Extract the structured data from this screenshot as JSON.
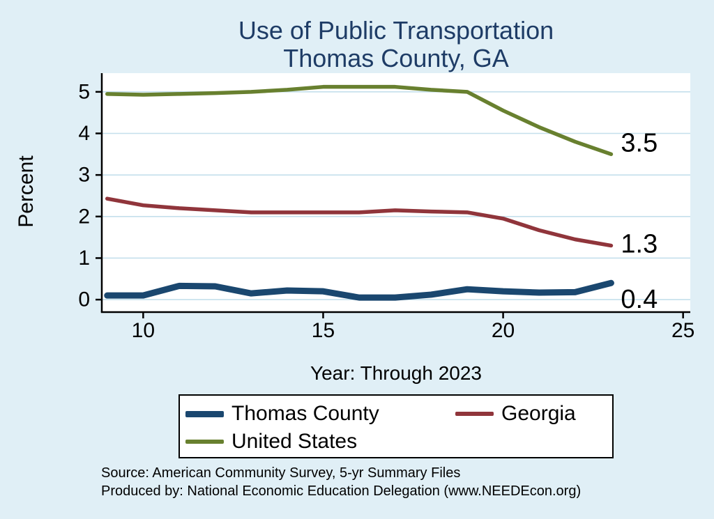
{
  "chart_data": {
    "type": "line",
    "title": "Use of Public Transportation",
    "subtitle": "Thomas County, GA",
    "xlabel": "Year: Through 2023",
    "ylabel": "Percent",
    "xlim": [
      8.85,
      25.2
    ],
    "ylim": [
      -0.3,
      5.45
    ],
    "xticks": [
      10,
      15,
      20,
      25
    ],
    "yticks": [
      0,
      1,
      2,
      3,
      4,
      5
    ],
    "grid": "horizontal",
    "legend_position": "bottom",
    "x": [
      9,
      10,
      11,
      12,
      13,
      14,
      15,
      16,
      17,
      18,
      19,
      20,
      21,
      22,
      23
    ],
    "series": [
      {
        "name": "Thomas County",
        "color": "#1a476f",
        "values": [
          0.1,
          0.1,
          0.33,
          0.32,
          0.15,
          0.22,
          0.2,
          0.05,
          0.05,
          0.12,
          0.25,
          0.2,
          0.17,
          0.18,
          0.4
        ],
        "end_label": "0.4"
      },
      {
        "name": "Georgia",
        "color": "#90353b",
        "values": [
          2.43,
          2.27,
          2.2,
          2.15,
          2.1,
          2.1,
          2.1,
          2.1,
          2.15,
          2.12,
          2.1,
          1.95,
          1.67,
          1.45,
          1.3
        ],
        "end_label": "1.3"
      },
      {
        "name": "United States",
        "color": "#68802f",
        "values": [
          4.95,
          4.93,
          4.95,
          4.97,
          5.0,
          5.05,
          5.12,
          5.12,
          5.12,
          5.05,
          5.0,
          4.55,
          4.15,
          3.8,
          3.5
        ],
        "end_label": "3.5"
      }
    ]
  },
  "footer": {
    "source": "Source: American Community Survey, 5-yr Summary Files",
    "produced_by": "Produced by: National Economic Education Delegation (www.NEEDEcon.org)"
  },
  "colors": {
    "background": "#e0eff6",
    "plot_bg": "#ffffff",
    "grid": "#c4dfec",
    "axis": "#000000",
    "title": "#1e3c66"
  }
}
